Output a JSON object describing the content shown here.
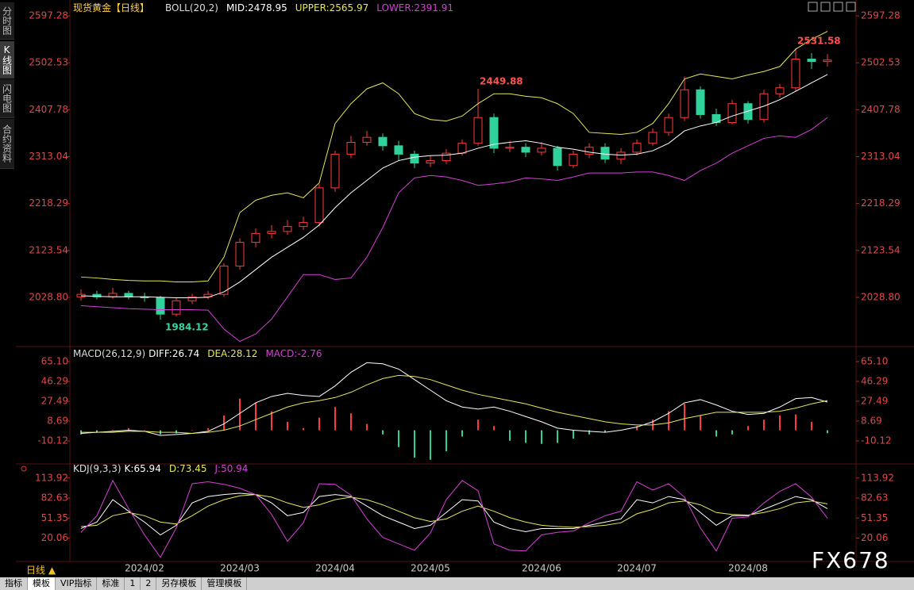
{
  "sidebar": [
    "分时图",
    "K线图",
    "闪电图",
    "合约资料"
  ],
  "period": "日线 ▲",
  "toolbar": [
    "指标",
    "模板",
    "VIP指标",
    "标准",
    "1",
    "2",
    "另存模板",
    "管理模板"
  ],
  "watermark": "FX678",
  "legend_separator": ":",
  "chart_data": [
    {
      "type": "candlestick",
      "title": "现货黄金【日线】",
      "indicator": "BOLL(20,2)",
      "up_color": "#ff3b3b",
      "down_color": "#2fd29a",
      "open": [
        2030,
        2035,
        2030,
        2037,
        2030,
        2028,
        1995,
        2022,
        2030,
        2035,
        2092,
        2140,
        2158,
        2162,
        2172,
        2180,
        2250,
        2318,
        2342,
        2352,
        2335,
        2318,
        2300,
        2305,
        2320,
        2340,
        2392,
        2330,
        2332,
        2322,
        2330,
        2295,
        2318,
        2332,
        2308,
        2322,
        2340,
        2362,
        2392,
        2448,
        2398,
        2382,
        2420,
        2388,
        2440,
        2452,
        2510,
        2505
      ],
      "high": [
        2045,
        2042,
        2048,
        2042,
        2038,
        2032,
        2028,
        2036,
        2042,
        2098,
        2148,
        2168,
        2175,
        2185,
        2192,
        2258,
        2325,
        2355,
        2365,
        2360,
        2345,
        2325,
        2315,
        2328,
        2348,
        2449.88,
        2400,
        2345,
        2340,
        2342,
        2335,
        2325,
        2340,
        2340,
        2330,
        2348,
        2370,
        2400,
        2475,
        2455,
        2410,
        2428,
        2425,
        2448,
        2460,
        2531.58,
        2522,
        2520
      ],
      "low": [
        2022,
        2025,
        2026,
        2025,
        2020,
        1984.12,
        1990,
        2015,
        2025,
        2030,
        2085,
        2130,
        2148,
        2155,
        2165,
        2172,
        2242,
        2310,
        2335,
        2325,
        2305,
        2290,
        2292,
        2298,
        2315,
        2335,
        2320,
        2322,
        2312,
        2315,
        2285,
        2290,
        2310,
        2300,
        2298,
        2315,
        2335,
        2355,
        2385,
        2390,
        2375,
        2378,
        2380,
        2382,
        2432,
        2445,
        2490,
        2495
      ],
      "close": [
        2035,
        2030,
        2037,
        2030,
        2028,
        1995,
        2022,
        2030,
        2035,
        2092,
        2140,
        2158,
        2162,
        2172,
        2180,
        2250,
        2318,
        2342,
        2352,
        2335,
        2318,
        2300,
        2305,
        2320,
        2340,
        2392,
        2330,
        2332,
        2322,
        2330,
        2295,
        2318,
        2332,
        2308,
        2322,
        2340,
        2362,
        2392,
        2448,
        2398,
        2382,
        2420,
        2388,
        2440,
        2452,
        2510,
        2505,
        2508
      ],
      "series": [
        {
          "name": "MID",
          "color": "#ffffff",
          "values": [
            2032,
            2031,
            2030,
            2030,
            2030,
            2029,
            2028,
            2028,
            2029,
            2040,
            2060,
            2085,
            2110,
            2130,
            2150,
            2175,
            2210,
            2240,
            2265,
            2290,
            2305,
            2312,
            2315,
            2316,
            2320,
            2330,
            2338,
            2342,
            2345,
            2340,
            2332,
            2328,
            2322,
            2318,
            2316,
            2318,
            2325,
            2340,
            2365,
            2375,
            2382,
            2395,
            2405,
            2415,
            2428,
            2445,
            2462,
            2478.95
          ]
        },
        {
          "name": "UPPER",
          "color": "#e6e65a",
          "values": [
            2070,
            2068,
            2065,
            2063,
            2062,
            2062,
            2060,
            2060,
            2062,
            2110,
            2200,
            2225,
            2235,
            2240,
            2230,
            2260,
            2380,
            2420,
            2450,
            2462,
            2440,
            2400,
            2388,
            2385,
            2395,
            2420,
            2440,
            2440,
            2435,
            2432,
            2420,
            2400,
            2362,
            2360,
            2358,
            2362,
            2380,
            2420,
            2470,
            2480,
            2475,
            2470,
            2478,
            2485,
            2495,
            2530,
            2550,
            2565.97
          ]
        },
        {
          "name": "LOWER",
          "color": "#d63fd6",
          "values": [
            2012,
            2010,
            2008,
            2006,
            2005,
            2004,
            2004,
            2004,
            2003,
            1965,
            1940,
            1955,
            1985,
            2030,
            2075,
            2075,
            2065,
            2068,
            2110,
            2170,
            2240,
            2270,
            2275,
            2272,
            2265,
            2255,
            2258,
            2262,
            2270,
            2268,
            2265,
            2272,
            2280,
            2280,
            2280,
            2282,
            2282,
            2275,
            2265,
            2285,
            2300,
            2320,
            2335,
            2350,
            2355,
            2352,
            2368,
            2391.91
          ]
        }
      ],
      "high_labels": [
        2449.88,
        2531.58
      ],
      "low_labels": [
        1984.12
      ],
      "ylim": [
        1932.8,
        2621.3
      ],
      "yticks": [
        2597.28,
        2502.53,
        2407.78,
        2313.04,
        2218.29,
        2123.54,
        {
          "value": 2028.8,
          "label": "2028.80"
        }
      ]
    },
    {
      "type": "macd",
      "title": "MACD(26,12,9)",
      "series": [
        {
          "name": "DIFF",
          "color": "#ffffff",
          "values": [
            -3,
            -2,
            -1,
            0,
            -1,
            -5,
            -4,
            -3,
            -1,
            6,
            16,
            26,
            32,
            35,
            33,
            32,
            42,
            55,
            64,
            63,
            58,
            48,
            38,
            28,
            22,
            20,
            22,
            18,
            13,
            8,
            2,
            0,
            -1,
            -2,
            0,
            3,
            8,
            16,
            26,
            29,
            24,
            18,
            15,
            16,
            22,
            30,
            31,
            26.74
          ]
        },
        {
          "name": "DEA",
          "color": "#e6e65a",
          "values": [
            -2,
            -2,
            -2,
            -1,
            -1,
            -2,
            -2,
            -3,
            -2,
            0,
            4,
            10,
            16,
            22,
            26,
            28,
            31,
            36,
            43,
            49,
            52,
            51,
            48,
            43,
            38,
            34,
            31,
            28,
            25,
            21,
            17,
            14,
            11,
            8,
            6,
            5,
            5,
            7,
            11,
            14,
            17,
            17,
            17,
            17,
            18,
            21,
            25,
            28.12
          ]
        },
        {
          "name": "MACD",
          "color": "#d63fd6",
          "style": "bar",
          "up_color": "#ff3b3b",
          "down_color": "#2fd29a",
          "values": [
            -4,
            -2,
            0,
            2,
            0,
            -4,
            -3,
            0,
            2,
            14,
            30,
            26,
            18,
            8,
            2,
            12,
            22,
            16,
            6,
            -4,
            -16,
            -26,
            -28,
            -20,
            -6,
            10,
            4,
            -10,
            -12,
            -13,
            -12,
            -8,
            -4,
            -2,
            0,
            4,
            10,
            18,
            25,
            14,
            -6,
            -4,
            4,
            10,
            14,
            15,
            8,
            -2.76
          ]
        }
      ],
      "ylim": [
        -29.7,
        77.1
      ],
      "yticks": [
        {
          "value": 65.1,
          "label": "65.10"
        },
        46.29,
        27.49,
        8.69,
        -10.12
      ]
    },
    {
      "type": "line",
      "title": "KDJ(9,3,3)",
      "series": [
        {
          "name": "K",
          "color": "#ffffff",
          "values": [
            35,
            45,
            80,
            62,
            45,
            25,
            40,
            75,
            85,
            88,
            90,
            88,
            75,
            55,
            60,
            85,
            88,
            85,
            70,
            55,
            45,
            35,
            40,
            60,
            80,
            78,
            45,
            35,
            30,
            35,
            35,
            35,
            40,
            45,
            50,
            80,
            75,
            85,
            80,
            60,
            40,
            55,
            55,
            65,
            75,
            85,
            80,
            65.94
          ]
        },
        {
          "name": "D",
          "color": "#e6e65a",
          "values": [
            38,
            40,
            55,
            60,
            55,
            45,
            42,
            55,
            70,
            80,
            86,
            88,
            84,
            75,
            68,
            72,
            80,
            84,
            80,
            72,
            62,
            52,
            46,
            50,
            62,
            70,
            62,
            52,
            45,
            40,
            38,
            37,
            38,
            40,
            44,
            58,
            65,
            75,
            78,
            72,
            60,
            57,
            56,
            60,
            66,
            75,
            78,
            73.45
          ]
        },
        {
          "name": "J",
          "color": "#d63fd6",
          "values": [
            29,
            55,
            110,
            66,
            25,
            -10,
            36,
            105,
            108,
            104,
            98,
            88,
            57,
            15,
            44,
            105,
            104,
            87,
            50,
            21,
            11,
            1,
            28,
            80,
            110,
            94,
            11,
            1,
            0,
            25,
            29,
            31,
            44,
            55,
            62,
            108,
            95,
            105,
            84,
            36,
            0,
            51,
            53,
            75,
            93,
            105,
            84,
            50.94
          ]
        }
      ],
      "categories": [
        null,
        null,
        null,
        null,
        "2024/02",
        null,
        null,
        null,
        null,
        null,
        "2024/03",
        null,
        null,
        null,
        null,
        null,
        "2024/04",
        null,
        null,
        null,
        null,
        null,
        "2024/05",
        null,
        null,
        null,
        null,
        null,
        null,
        "2024/06",
        null,
        null,
        null,
        null,
        null,
        "2024/07",
        null,
        null,
        null,
        null,
        null,
        null,
        "2024/08",
        null,
        null,
        null,
        null,
        null
      ],
      "ylim": [
        -14,
        132.2
      ],
      "yticks": [
        113.92,
        82.63,
        51.35,
        20.06
      ]
    }
  ]
}
